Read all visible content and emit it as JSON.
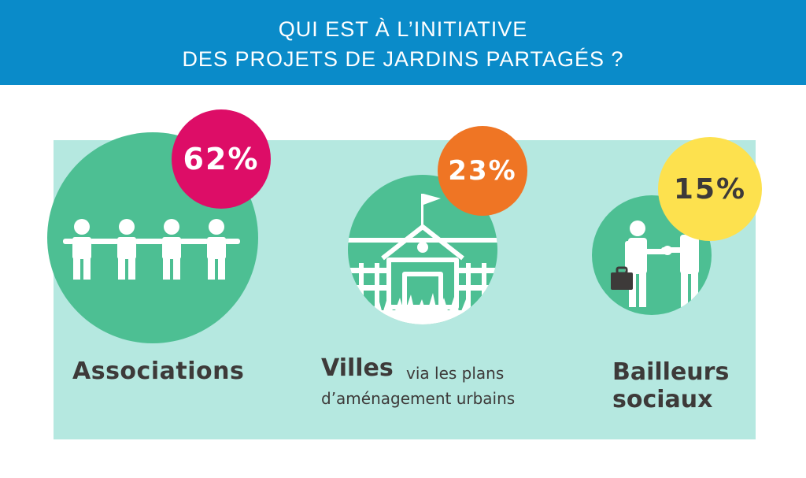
{
  "header": {
    "title_line1": "QUI EST À L’INITIATIVE",
    "title_line2": "DES PROJETS DE JARDINS PARTAGÉS ?"
  },
  "chart_data": {
    "type": "pie",
    "title": "QUI EST À L’INITIATIVE DES PROJETS DE JARDINS PARTAGÉS ?",
    "categories": [
      "Associations",
      "Villes via les plans d’aménagement urbains",
      "Bailleurs sociaux"
    ],
    "values": [
      62,
      23,
      15
    ],
    "unit": "%",
    "items": [
      {
        "name": "Associations",
        "value": 62,
        "value_label": "62%",
        "badge_color": "#dd0d67",
        "icon": "people-holding-hands-icon"
      },
      {
        "name": "Villes",
        "subtitle_part1": "via les plans",
        "subtitle_part2": "d’aménagement urbains",
        "value": 23,
        "value_label": "23%",
        "badge_color": "#ef7524",
        "icon": "town-hall-icon"
      },
      {
        "name_line1": "Bailleurs",
        "name_line2": "sociaux",
        "value": 15,
        "value_label": "15%",
        "badge_color": "#fde14e",
        "icon": "handshake-icon"
      }
    ]
  },
  "colors": {
    "header": "#0a8bc9",
    "panel": "#b5e8e0",
    "circle": "#4dbf93",
    "text": "#3d3a39"
  }
}
